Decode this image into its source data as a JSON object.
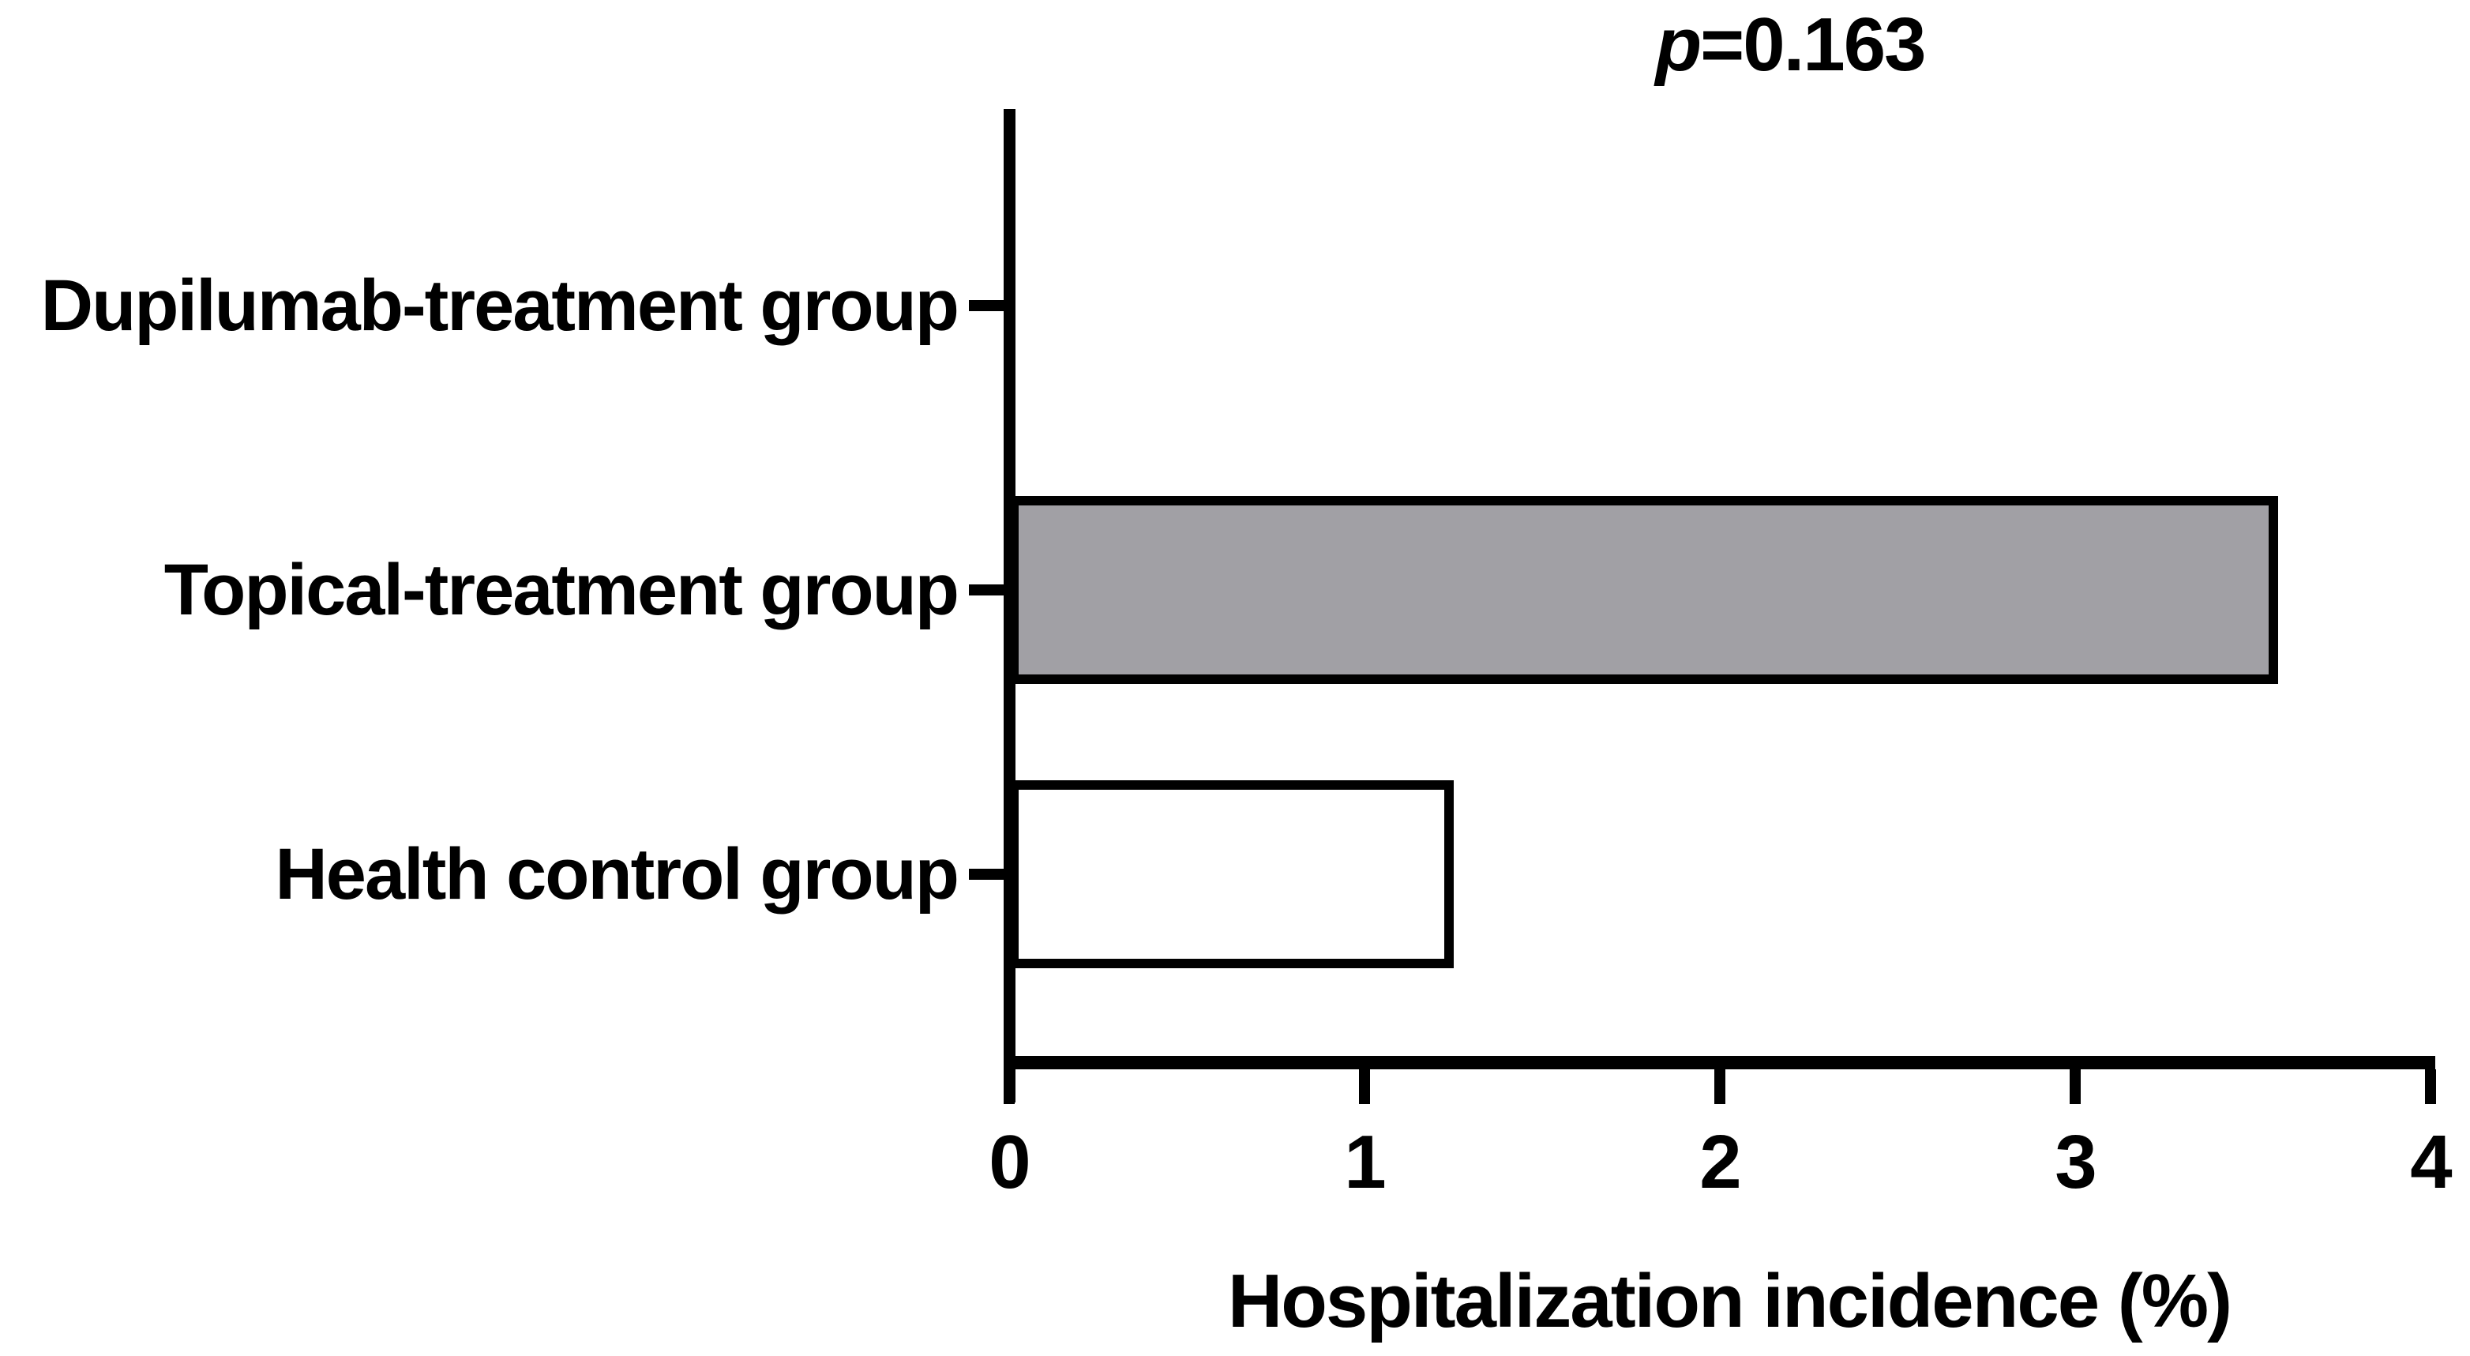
{
  "chart_data": {
    "type": "bar",
    "orientation": "horizontal",
    "annotation": "p=0.163",
    "annotation_p": "p",
    "annotation_value": "=0.163",
    "categories": [
      "Dupilumab-treatment group",
      "Topical-treatment group",
      "Health control group"
    ],
    "values": [
      0,
      3.57,
      1.25
    ],
    "bar_colors": [
      "#ffffff",
      "#a1a0a5",
      "#ffffff"
    ],
    "bar_border_color": "#000000",
    "xlabel": "Hospitalization incidence (%)",
    "x_ticks": [
      0,
      1,
      2,
      3,
      4
    ],
    "xlim": [
      0,
      4
    ],
    "grid": false,
    "legend": "none",
    "axis_color": "#000000",
    "background_color": "#ffffff"
  }
}
